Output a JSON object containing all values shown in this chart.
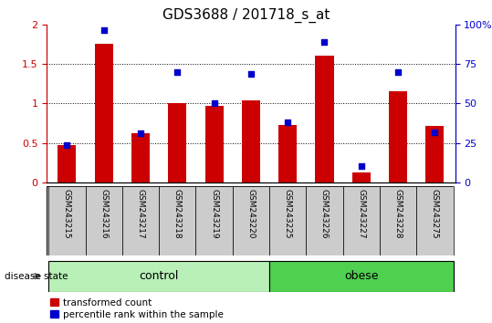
{
  "title": "GDS3688 / 201718_s_at",
  "categories": [
    "GSM243215",
    "GSM243216",
    "GSM243217",
    "GSM243218",
    "GSM243219",
    "GSM243220",
    "GSM243225",
    "GSM243226",
    "GSM243227",
    "GSM243228",
    "GSM243275"
  ],
  "red_values": [
    0.47,
    1.75,
    0.62,
    1.0,
    0.97,
    1.04,
    0.73,
    1.6,
    0.13,
    1.15,
    0.72
  ],
  "blue_values": [
    0.47,
    1.92,
    0.62,
    1.4,
    1.0,
    1.37,
    0.76,
    1.78,
    0.21,
    1.4,
    0.63
  ],
  "ylim_left": [
    0,
    2
  ],
  "ylim_right": [
    0,
    100
  ],
  "yticks_left": [
    0,
    0.5,
    1.0,
    1.5,
    2.0
  ],
  "ytick_labels_left": [
    "0",
    "0.5",
    "1",
    "1.5",
    "2"
  ],
  "yticks_right": [
    0,
    25,
    50,
    75,
    100
  ],
  "ytick_labels_right": [
    "0",
    "25",
    "50",
    "75",
    "100%"
  ],
  "red_color": "#cc0000",
  "blue_color": "#0000cc",
  "bar_width": 0.5,
  "group_control": [
    0,
    1,
    2,
    3,
    4,
    5
  ],
  "group_obese": [
    6,
    7,
    8,
    9,
    10
  ],
  "control_label": "control",
  "obese_label": "obese",
  "disease_state_label": "disease state",
  "legend_red": "transformed count",
  "legend_blue": "percentile rank within the sample",
  "bg_color": "#ffffff",
  "xticklabel_bg": "#cccccc",
  "control_bg": "#b8f0b8",
  "obese_bg": "#50d050",
  "title_fontsize": 11,
  "tick_fontsize": 8,
  "label_fontsize": 8
}
